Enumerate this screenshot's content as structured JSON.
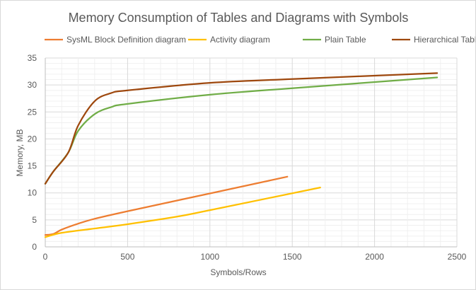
{
  "chart_data": {
    "type": "line",
    "title": "Memory Consumption of Tables and Diagrams with Symbols",
    "xlabel": "Symbols/Rows",
    "ylabel": "Memory, MB",
    "xlim": [
      0,
      2500
    ],
    "ylim": [
      0,
      35
    ],
    "xticks": [
      0,
      500,
      1000,
      1500,
      2000,
      2500
    ],
    "yticks": [
      0,
      5,
      10,
      15,
      20,
      25,
      30,
      35
    ],
    "grid": true,
    "legend_position": "top",
    "series": [
      {
        "name": "SysML Block Definition diagram",
        "color": "#ED7D31",
        "points": [
          [
            0,
            2.2
          ],
          [
            50,
            2.4
          ],
          [
            100,
            3.2
          ],
          [
            200,
            4.3
          ],
          [
            300,
            5.2
          ],
          [
            500,
            6.6
          ],
          [
            1000,
            9.9
          ],
          [
            1470,
            13
          ]
        ]
      },
      {
        "name": "Activity diagram",
        "color": "#FFC000",
        "points": [
          [
            0,
            1.8
          ],
          [
            100,
            2.6
          ],
          [
            300,
            3.4
          ],
          [
            500,
            4.2
          ],
          [
            800,
            5.6
          ],
          [
            1000,
            6.8
          ],
          [
            1670,
            11
          ]
        ]
      },
      {
        "name": "Plain Table",
        "color": "#70AD47",
        "points": [
          [
            0,
            11.7
          ],
          [
            50,
            14
          ],
          [
            140,
            17.5
          ],
          [
            200,
            21.5
          ],
          [
            300,
            24.6
          ],
          [
            400,
            25.9
          ],
          [
            500,
            26.5
          ],
          [
            1000,
            28.2
          ],
          [
            1500,
            29.4
          ],
          [
            2380,
            31.4
          ]
        ]
      },
      {
        "name": "Hierarchical Table",
        "color": "#9E480E",
        "points": [
          [
            0,
            11.7
          ],
          [
            50,
            14
          ],
          [
            140,
            17.5
          ],
          [
            200,
            22.5
          ],
          [
            300,
            27
          ],
          [
            400,
            28.5
          ],
          [
            500,
            29
          ],
          [
            1000,
            30.4
          ],
          [
            1500,
            31.1
          ],
          [
            2380,
            32.2
          ]
        ]
      }
    ]
  }
}
